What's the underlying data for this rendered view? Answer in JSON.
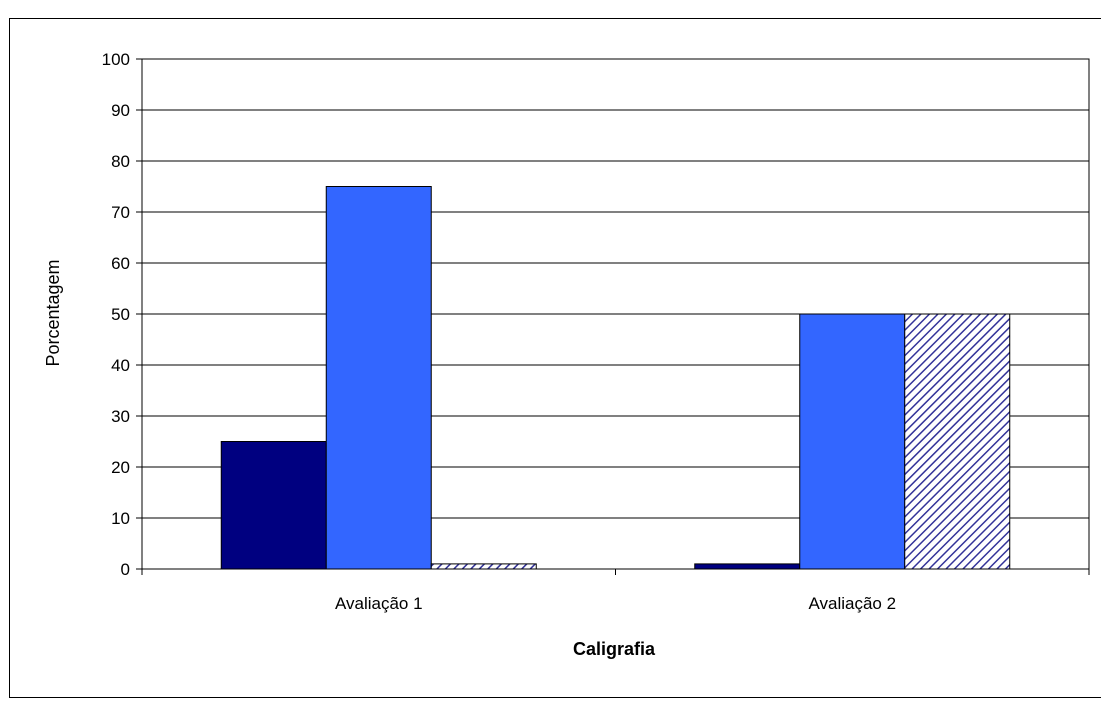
{
  "chart_data": {
    "type": "bar",
    "title": "",
    "xlabel": "Caligrafia",
    "ylabel": "Porcentagem",
    "ylim": [
      0,
      100
    ],
    "yticks": [
      0,
      10,
      20,
      30,
      40,
      50,
      60,
      70,
      80,
      90,
      100
    ],
    "grid": true,
    "legend": "none",
    "categories": [
      "Avaliação 1",
      "Avaliação 2"
    ],
    "series": [
      {
        "color": "#000080",
        "pattern": "solid",
        "values": [
          25,
          1
        ]
      },
      {
        "color": "#3366ff",
        "pattern": "solid",
        "values": [
          75,
          50
        ]
      },
      {
        "color": "#333399",
        "pattern": "diagonal-hatch",
        "values": [
          1,
          50
        ]
      }
    ]
  }
}
